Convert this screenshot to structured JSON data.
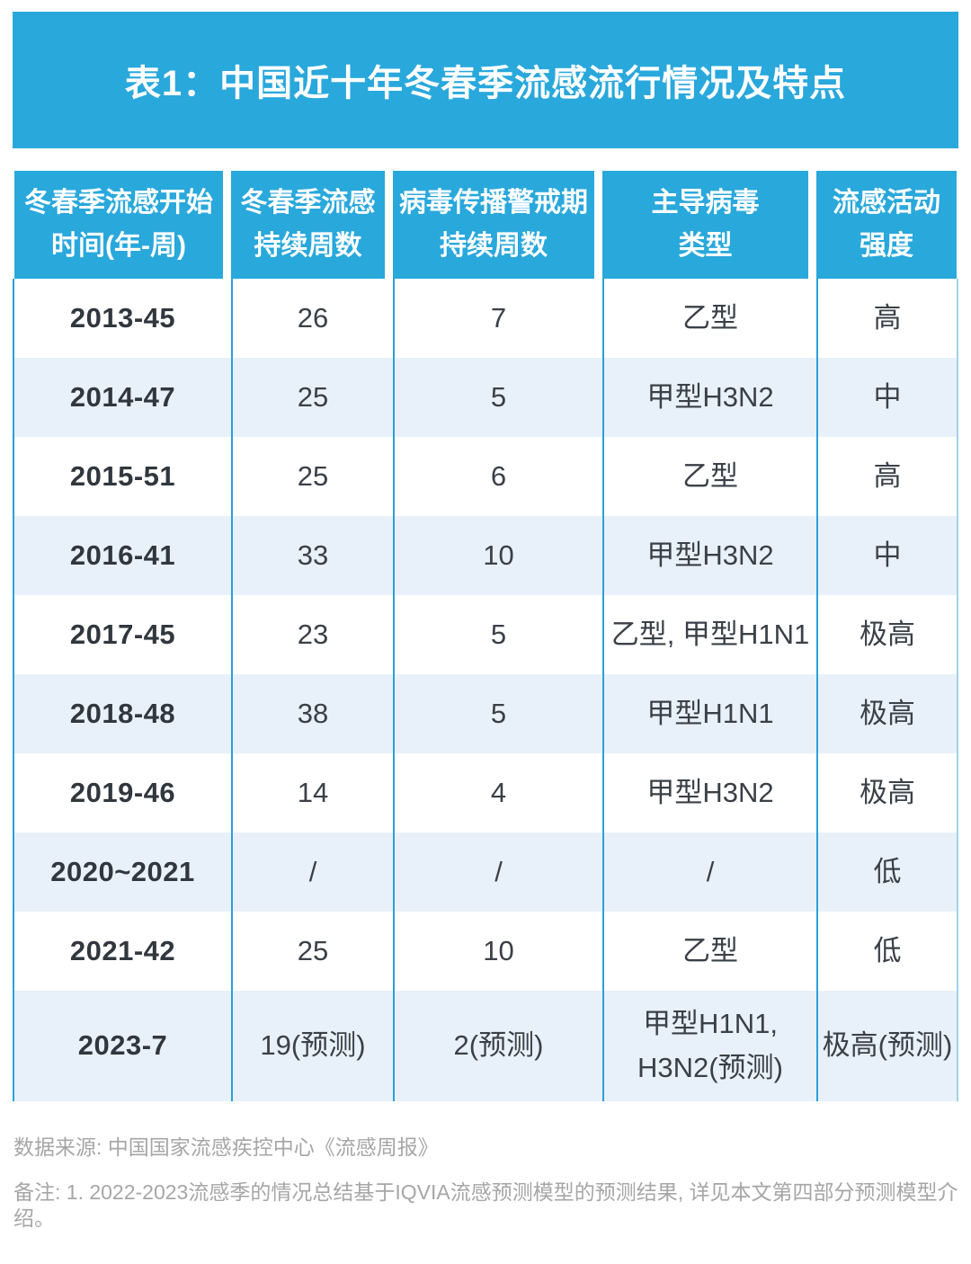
{
  "colors": {
    "accent_blue": "#29A8DC",
    "alt_row_bg": "#E8F1F9",
    "separator_blue": "#2C9FD8",
    "body_text": "#3A4047",
    "footnote_gray": "#A6A6A6"
  },
  "title_banner": {
    "text": "表1：中国近十年冬春季流感流行情况及特点"
  },
  "chart_data": {
    "type": "table",
    "title": "表1：中国近十年冬春季流感流行情况及特点",
    "columns": [
      {
        "label": "冬春季流感开始时间(年-周)",
        "line1": "冬春季流感开始",
        "line2": "时间(年-周)"
      },
      {
        "label": "冬春季流感持续周数",
        "line1": "冬春季流感",
        "line2": "持续周数"
      },
      {
        "label": "病毒传播警戒期持续周数",
        "line1": "病毒传播警戒期",
        "line2": "持续周数"
      },
      {
        "label": "主导病毒类型",
        "line1": "主导病毒",
        "line2": "类型"
      },
      {
        "label": "流感活动强度",
        "line1": "流感活动",
        "line2": "强度"
      }
    ],
    "rows": [
      [
        "2013-45",
        "26",
        "7",
        "乙型",
        "高"
      ],
      [
        "2014-47",
        "25",
        "5",
        "甲型H3N2",
        "中"
      ],
      [
        "2015-51",
        "25",
        "6",
        "乙型",
        "高"
      ],
      [
        "2016-41",
        "33",
        "10",
        "甲型H3N2",
        "中"
      ],
      [
        "2017-45",
        "23",
        "5",
        "乙型, 甲型H1N1",
        "极高"
      ],
      [
        "2018-48",
        "38",
        "5",
        "甲型H1N1",
        "极高"
      ],
      [
        "2019-46",
        "14",
        "4",
        "甲型H3N2",
        "极高"
      ],
      [
        "2020~2021",
        "/",
        "/",
        "/",
        "低"
      ],
      [
        "2021-42",
        "25",
        "10",
        "乙型",
        "低"
      ],
      [
        "2023-7",
        "19(预测)",
        "2(预测)",
        "甲型H1N1,\nH3N2(预测)",
        "极高(预测)"
      ]
    ]
  },
  "footnotes": {
    "source": "数据来源: 中国国家流感疾控中心《流感周报》",
    "note": "备注: 1. 2022-2023流感季的情况总结基于IQVIA流感预测模型的预测结果, 详见本文第四部分预测模型介绍。"
  }
}
